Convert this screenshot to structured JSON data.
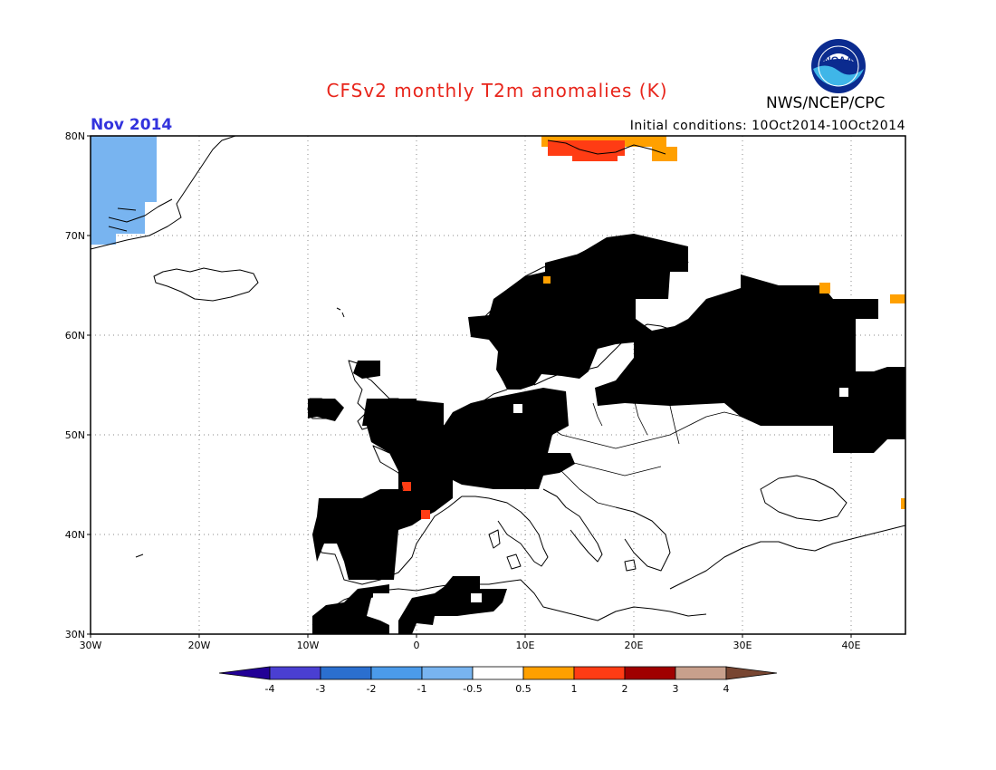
{
  "title": "CFSv2 monthly T2m anomalies (K)",
  "agency": "NWS/NCEP/CPC",
  "logo_text": "NOAA",
  "valid_month": "Nov 2014",
  "initial_conditions": "Initial conditions: 10Oct2014-10Oct2014",
  "map": {
    "projection": "lat-lon",
    "lon_range": [
      -30,
      45
    ],
    "lat_range": [
      30,
      80
    ],
    "lat_ticks": [
      "80N",
      "70N",
      "60N",
      "50N",
      "40N",
      "30N"
    ],
    "lon_ticks": [
      "30W",
      "20W",
      "10W",
      "0",
      "10E",
      "20E",
      "30E",
      "40E"
    ],
    "grid": "dotted",
    "colors": {
      "warm_1": "#ffa000",
      "warm_2": "#ff3c14",
      "cool_1": "#78b4f0",
      "coast": "#000000"
    }
  },
  "colorbar": {
    "labels": [
      "-4",
      "-3",
      "-2",
      "-1",
      "-0.5",
      "0.5",
      "1",
      "2",
      "3",
      "4"
    ],
    "colors": [
      "#220096",
      "#4a3fd2",
      "#2b6fcf",
      "#4b9bea",
      "#78b4f0",
      "#ffffff",
      "#ffa000",
      "#ff3c14",
      "#a00000",
      "#c8a08c",
      "#784632"
    ]
  }
}
